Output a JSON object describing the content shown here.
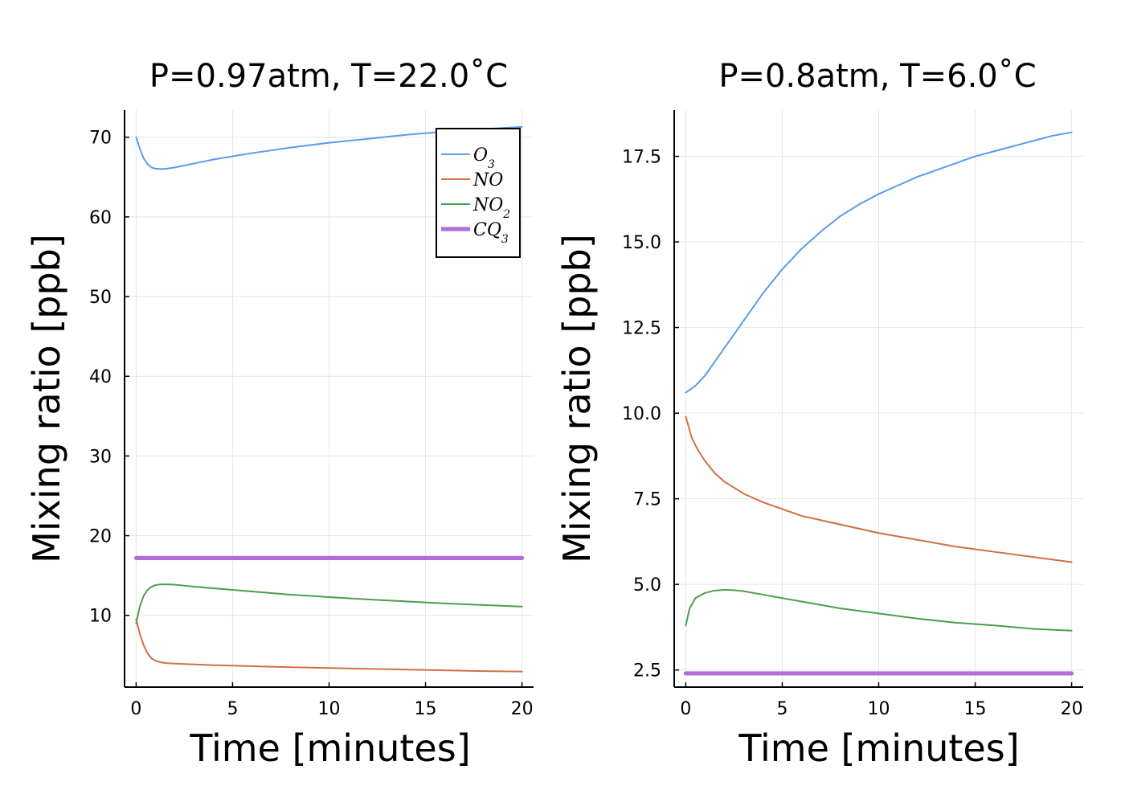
{
  "chart_data": [
    {
      "type": "line",
      "title": "P=0.97atm, T=22.0˚C",
      "xlabel": "Time [minutes]",
      "ylabel": "Mixing ratio [ppb]",
      "xlim": [
        -0.6,
        20.6
      ],
      "ylim": [
        1.0,
        73.4
      ],
      "xticks": [
        0,
        5,
        10,
        15,
        20
      ],
      "yticks": [
        10,
        20,
        30,
        40,
        50,
        60,
        70
      ],
      "grid": true,
      "legend": "top-right",
      "series": [
        {
          "name": "O",
          "sub": "3",
          "color": "#5b9bec",
          "width": 1.0,
          "x": [
            0,
            0.2,
            0.4,
            0.6,
            0.8,
            1.0,
            1.3,
            1.6,
            2.0,
            3,
            4,
            5,
            6,
            8,
            10,
            12,
            14,
            16,
            18,
            20
          ],
          "y": [
            70.0,
            68.5,
            67.3,
            66.6,
            66.2,
            66.05,
            66.0,
            66.05,
            66.2,
            66.7,
            67.2,
            67.6,
            68.0,
            68.7,
            69.3,
            69.8,
            70.3,
            70.7,
            71.0,
            71.3
          ]
        },
        {
          "name": "NO",
          "sub": "",
          "color": "#d16f44",
          "width": 1.0,
          "x": [
            0,
            0.2,
            0.4,
            0.6,
            0.8,
            1.0,
            1.3,
            1.6,
            2.0,
            3,
            4,
            5,
            6,
            8,
            10,
            12,
            14,
            16,
            18,
            20
          ],
          "y": [
            9.5,
            7.6,
            6.2,
            5.2,
            4.6,
            4.3,
            4.1,
            4.0,
            3.95,
            3.85,
            3.75,
            3.7,
            3.62,
            3.5,
            3.4,
            3.3,
            3.2,
            3.1,
            3.0,
            2.95
          ]
        },
        {
          "name": "NO",
          "sub": "2",
          "color": "#4aa049",
          "width": 1.0,
          "x": [
            0,
            0.2,
            0.4,
            0.6,
            0.8,
            1.0,
            1.3,
            1.6,
            2.0,
            3,
            4,
            5,
            6,
            8,
            10,
            12,
            14,
            16,
            18,
            20
          ],
          "y": [
            9.0,
            11.2,
            12.5,
            13.2,
            13.6,
            13.8,
            13.9,
            13.9,
            13.85,
            13.6,
            13.4,
            13.2,
            13.0,
            12.6,
            12.3,
            12.0,
            11.75,
            11.5,
            11.3,
            11.1
          ]
        },
        {
          "name": "CQ",
          "sub": "3",
          "color": "#b06fd6",
          "width": 2.6,
          "x": [
            0,
            20
          ],
          "y": [
            17.2,
            17.2
          ]
        }
      ]
    },
    {
      "type": "line",
      "title": "P=0.8atm, T=6.0˚C",
      "xlabel": "Time [minutes]",
      "ylabel": "Mixing ratio [ppb]",
      "xlim": [
        -0.6,
        20.6
      ],
      "ylim": [
        2.0,
        18.85
      ],
      "xticks": [
        0,
        5,
        10,
        15,
        20
      ],
      "yticks": [
        2.5,
        5.0,
        7.5,
        10.0,
        12.5,
        15.0,
        17.5
      ],
      "grid": true,
      "legend": "none",
      "series": [
        {
          "name": "O3",
          "color": "#5b9bec",
          "width": 1.0,
          "x": [
            0,
            0.5,
            1,
            2,
            3,
            4,
            5,
            6,
            7,
            8,
            9,
            10,
            11,
            12,
            13,
            14,
            15,
            16,
            17,
            18,
            19,
            20
          ],
          "y": [
            10.6,
            10.8,
            11.1,
            11.9,
            12.7,
            13.5,
            14.2,
            14.8,
            15.3,
            15.75,
            16.1,
            16.4,
            16.65,
            16.9,
            17.1,
            17.3,
            17.5,
            17.65,
            17.8,
            17.95,
            18.1,
            18.2
          ]
        },
        {
          "name": "NO",
          "color": "#d16f44",
          "width": 1.0,
          "x": [
            0,
            0.3,
            0.6,
            1,
            1.5,
            2,
            3,
            4,
            5,
            6,
            8,
            10,
            12,
            14,
            16,
            18,
            20
          ],
          "y": [
            9.9,
            9.3,
            8.95,
            8.6,
            8.25,
            8.0,
            7.65,
            7.4,
            7.2,
            7.0,
            6.75,
            6.5,
            6.3,
            6.1,
            5.95,
            5.8,
            5.65
          ]
        },
        {
          "name": "NO2",
          "color": "#4aa049",
          "width": 1.0,
          "x": [
            0,
            0.2,
            0.5,
            1,
            1.5,
            2,
            2.5,
            3,
            4,
            5,
            6,
            8,
            10,
            12,
            14,
            16,
            18,
            20
          ],
          "y": [
            3.8,
            4.3,
            4.6,
            4.75,
            4.82,
            4.84,
            4.83,
            4.8,
            4.7,
            4.6,
            4.5,
            4.3,
            4.15,
            4.0,
            3.88,
            3.8,
            3.7,
            3.65
          ]
        },
        {
          "name": "CQ3",
          "color": "#b06fd6",
          "width": 2.6,
          "x": [
            0,
            20
          ],
          "y": [
            2.4,
            2.4
          ]
        }
      ]
    }
  ]
}
